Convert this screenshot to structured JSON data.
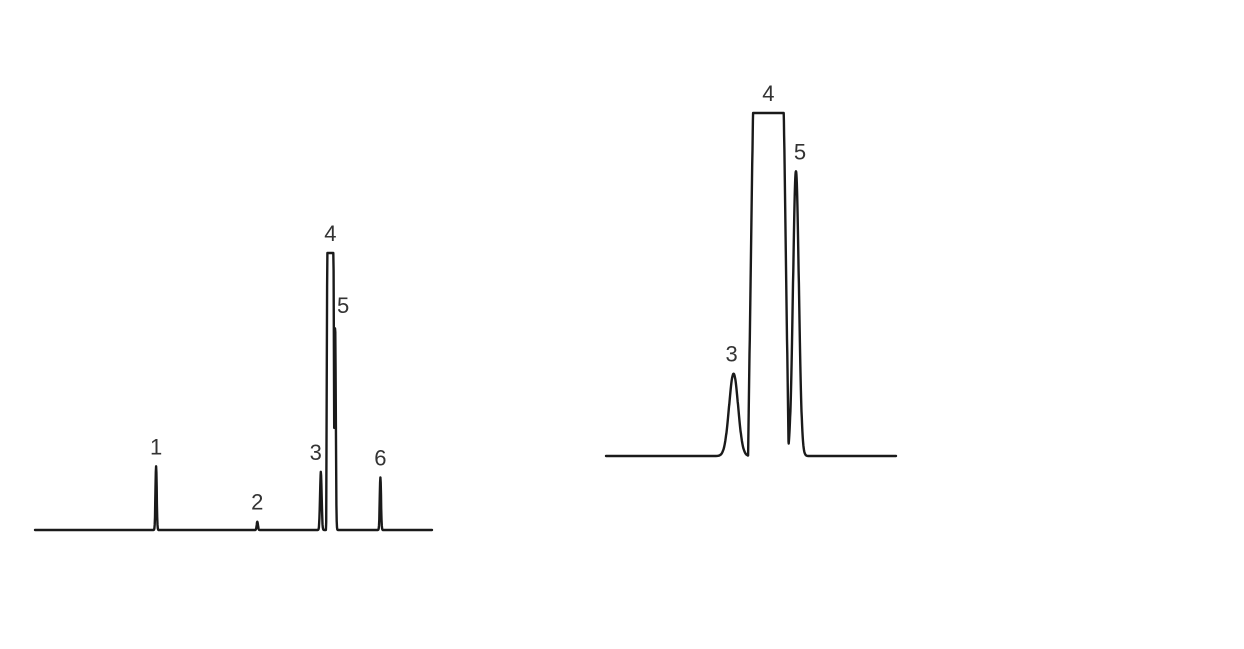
{
  "chart_data": [
    {
      "type": "line",
      "title": "",
      "xlabel": "",
      "ylabel": "",
      "xlim": [
        0,
        100
      ],
      "ylim": [
        0,
        100
      ],
      "grid": false,
      "legend": "none",
      "line_color": "#1a1a1a",
      "baseline_extent": [
        0,
        100
      ],
      "peaks": [
        {
          "label": "1",
          "x": 30.5,
          "height": 23,
          "width": 0.4,
          "shape": "spike"
        },
        {
          "label": "2",
          "x": 56,
          "height": 3,
          "width": 0.4,
          "shape": "spike"
        },
        {
          "label": "3",
          "x": 72,
          "height": 21,
          "width": 0.5,
          "shape": "spike"
        },
        {
          "label": "4",
          "x": 74.4,
          "height": 100,
          "width": 2.1,
          "shape": "flat-top"
        },
        {
          "label": "5",
          "x": 75.6,
          "height": 74,
          "width": 0.4,
          "shape": "spike"
        },
        {
          "label": "6",
          "x": 87,
          "height": 19,
          "width": 0.4,
          "shape": "spike"
        }
      ]
    },
    {
      "type": "line",
      "title": "",
      "xlabel": "",
      "ylabel": "",
      "xlim": [
        0,
        100
      ],
      "ylim": [
        0,
        100
      ],
      "grid": false,
      "legend": "none",
      "line_color": "#1a1a1a",
      "baseline_extent": [
        0,
        100
      ],
      "peaks": [
        {
          "label": "3",
          "x": 44,
          "height": 24,
          "width": 7,
          "shape": "gaussian"
        },
        {
          "label": "4",
          "x": 56,
          "height": 100,
          "width": 14,
          "shape": "flat-top"
        },
        {
          "label": "5",
          "x": 65.5,
          "height": 83,
          "width": 2.5,
          "shape": "spike"
        }
      ]
    }
  ]
}
